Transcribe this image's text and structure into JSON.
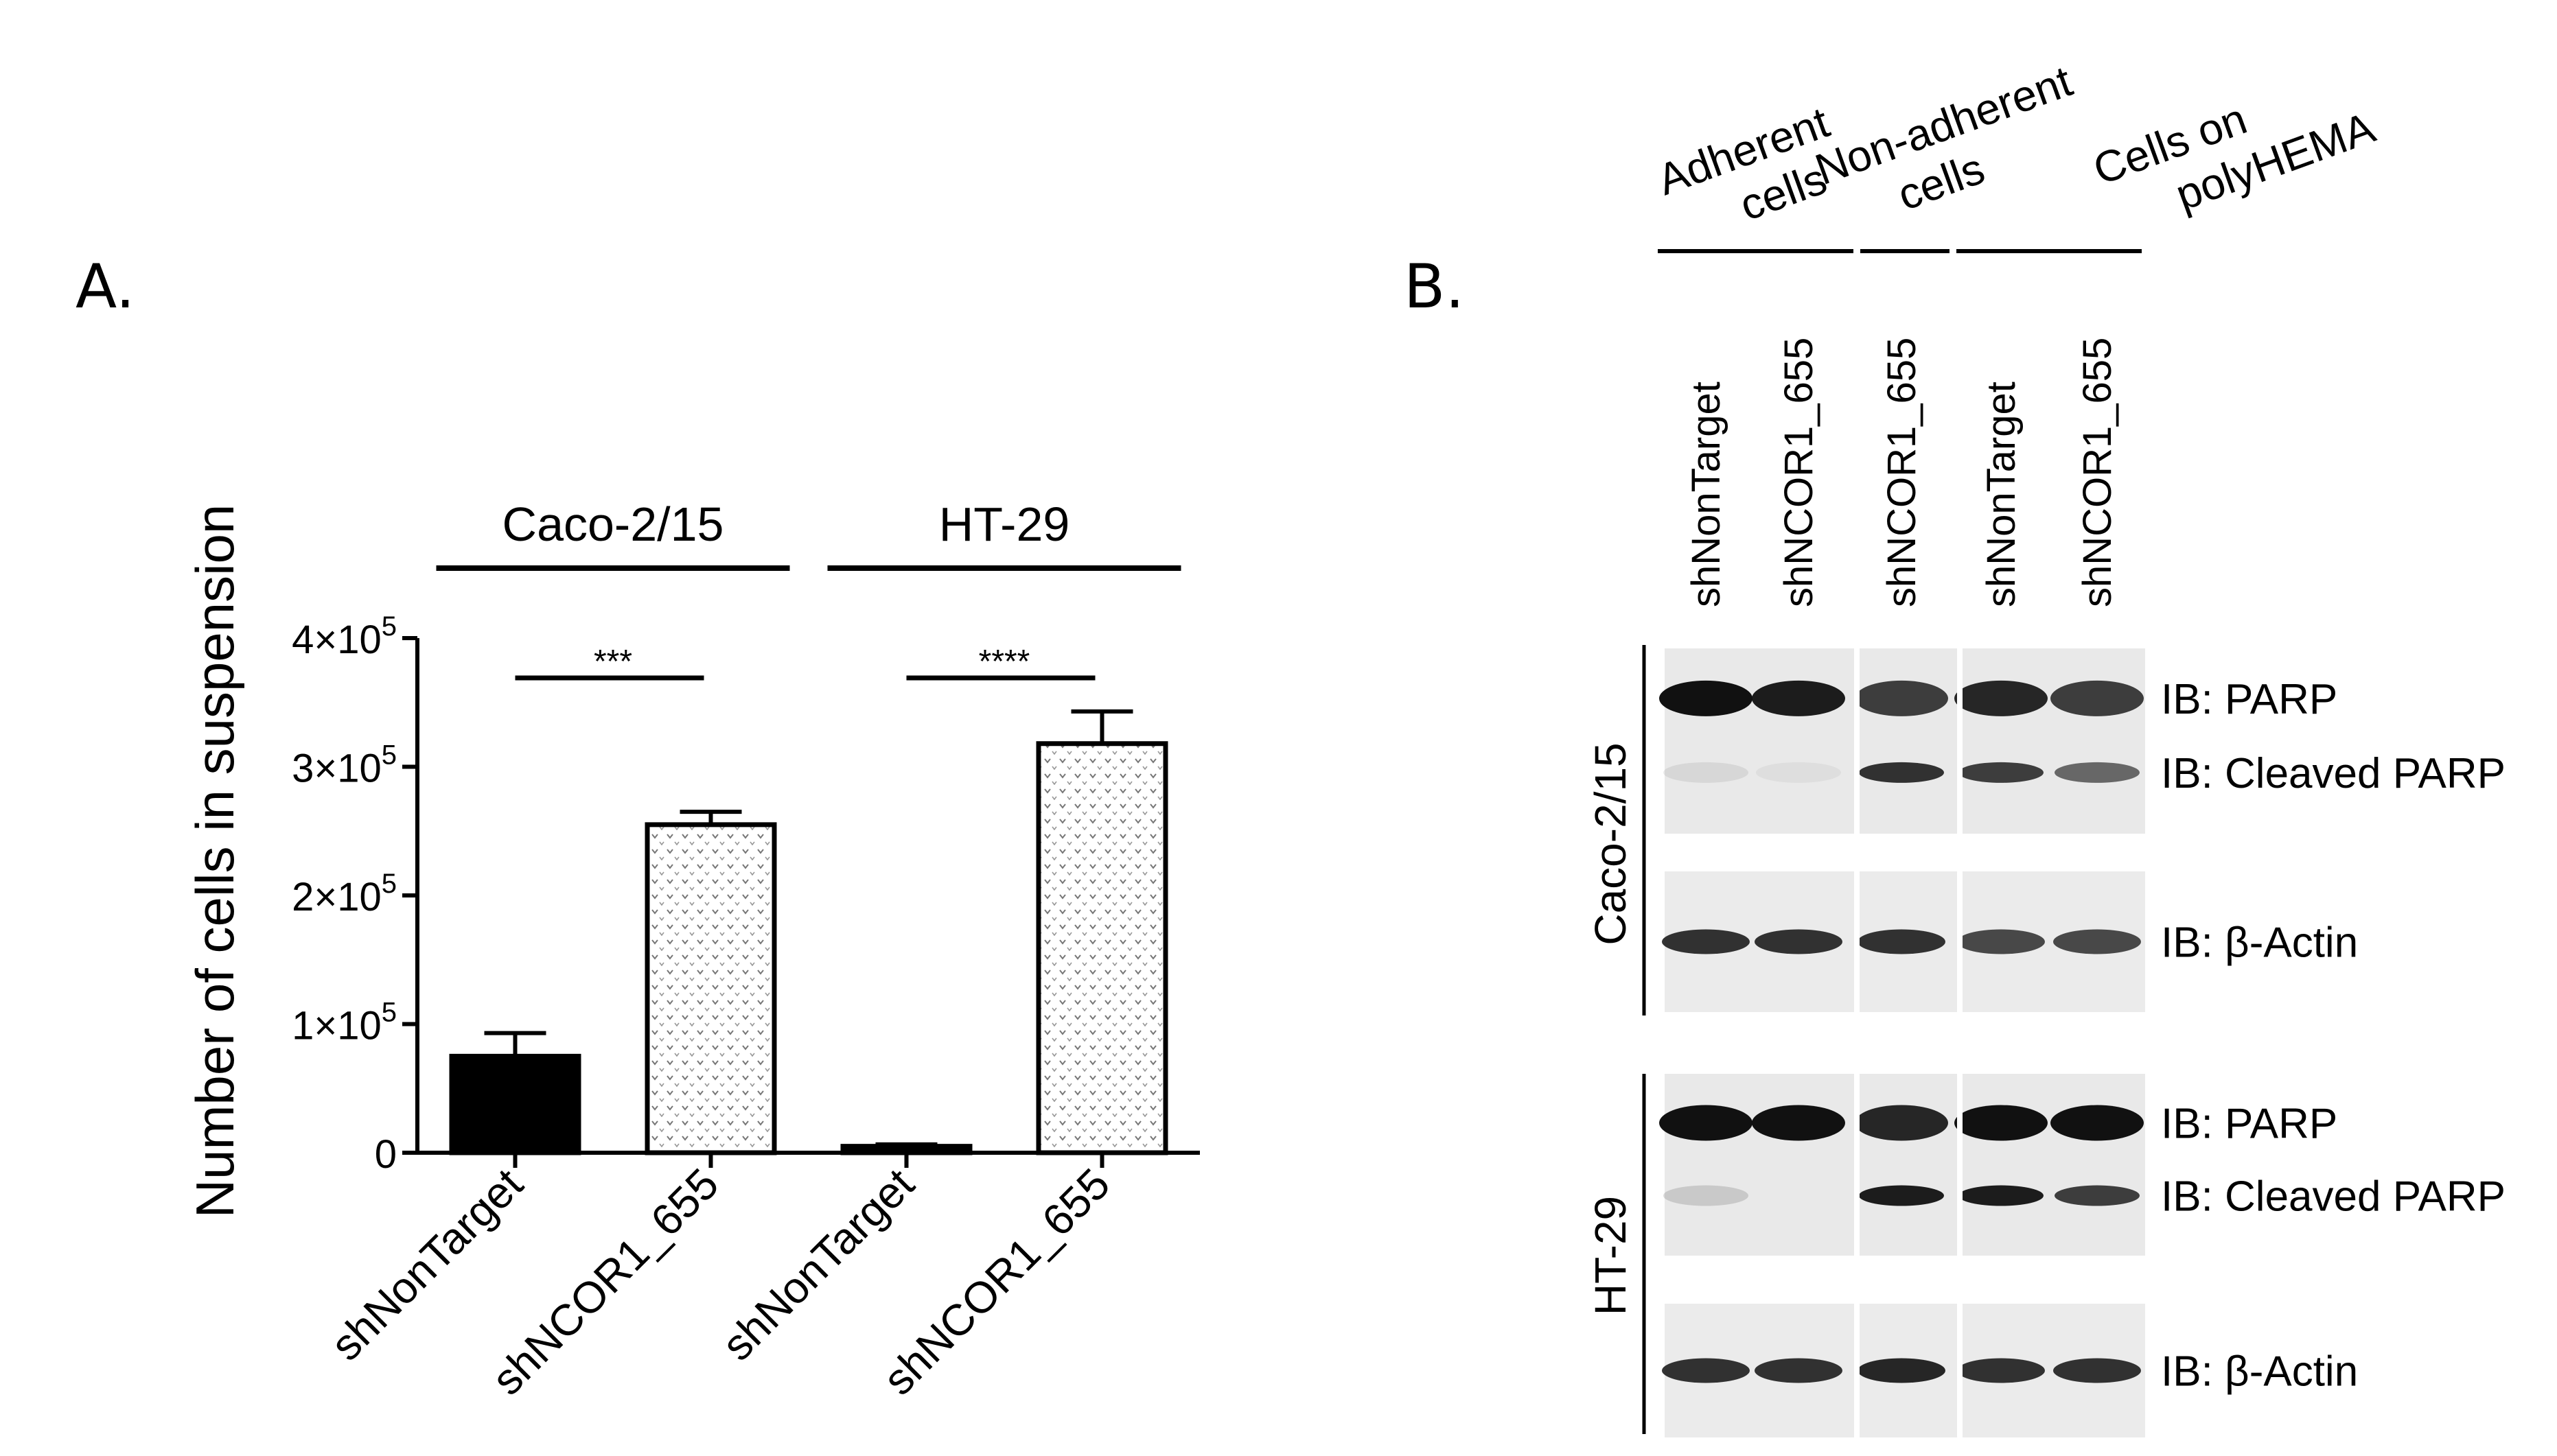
{
  "panel_labels": {
    "a": "A.",
    "b": "B."
  },
  "chart_data": {
    "type": "bar",
    "title": "",
    "xlabel": "",
    "ylabel": "Number of cells in suspension",
    "ylim": [
      0,
      400000
    ],
    "yticks": [
      {
        "value": 0,
        "base": "0",
        "exp": ""
      },
      {
        "value": 100000,
        "base": "1×10",
        "exp": "5"
      },
      {
        "value": 200000,
        "base": "2×10",
        "exp": "5"
      },
      {
        "value": 300000,
        "base": "3×10",
        "exp": "5"
      },
      {
        "value": 400000,
        "base": "4×10",
        "exp": "5"
      }
    ],
    "categories": [
      "shNonTarget",
      "shNCOR1_655",
      "shNonTarget",
      "shNCOR1_655"
    ],
    "groups": [
      {
        "name": "Caco-2/15",
        "significance": "***"
      },
      {
        "name": "HT-29",
        "significance": "****"
      }
    ],
    "values": [
      75000,
      255000,
      5000,
      318000
    ],
    "errors": [
      18000,
      10000,
      1500,
      25000
    ],
    "fills": [
      "#000000",
      "dotted",
      "#000000",
      "dotted"
    ]
  },
  "blot": {
    "conditions": [
      "Adherent cells",
      "Non-adherent cells",
      "Cells on polyHEMA"
    ],
    "condition_lines": [
      [
        "Adherent",
        "cells"
      ],
      [
        "Non-adherent",
        "cells"
      ],
      [
        "Cells on",
        "polyHEMA"
      ]
    ],
    "lanes": [
      "shNonTarget",
      "shNCOR1_655",
      "shNCOR1_655",
      "shNonTarget",
      "shNCOR1_655"
    ],
    "cell_lines": [
      "Caco-2/15",
      "HT-29"
    ],
    "row_labels": [
      "IB: PARP",
      "IB: Cleaved PARP",
      "IB: β-Actin"
    ],
    "band_intensity": {
      "Caco-2/15": {
        "PARP": [
          1.0,
          0.95,
          0.8,
          0.9,
          0.8
        ],
        "Cleaved PARP": [
          0.08,
          0.05,
          0.85,
          0.8,
          0.6
        ],
        "β-Actin": [
          0.85,
          0.85,
          0.85,
          0.75,
          0.75
        ]
      },
      "HT-29": {
        "PARP": [
          1.0,
          1.0,
          0.9,
          1.0,
          1.0
        ],
        "Cleaved PARP": [
          0.15,
          0.0,
          0.95,
          0.95,
          0.8
        ],
        "β-Actin": [
          0.85,
          0.85,
          0.9,
          0.85,
          0.85
        ]
      }
    }
  }
}
